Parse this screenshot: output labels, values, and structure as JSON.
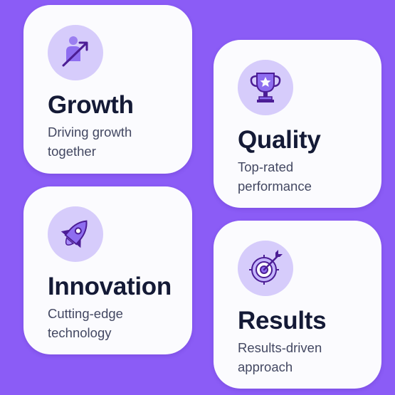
{
  "accent_color": "#8b5cf6",
  "cards": [
    {
      "icon": "person-growth-arrow-icon",
      "title": "Growth",
      "description": "Driving growth together"
    },
    {
      "icon": "trophy-star-icon",
      "title": "Quality",
      "description": "Top-rated performance"
    },
    {
      "icon": "rocket-icon",
      "title": "Innovation",
      "description": "Cutting-edge technology"
    },
    {
      "icon": "target-arrow-icon",
      "title": "Results",
      "description": "Results-driven approach"
    }
  ]
}
